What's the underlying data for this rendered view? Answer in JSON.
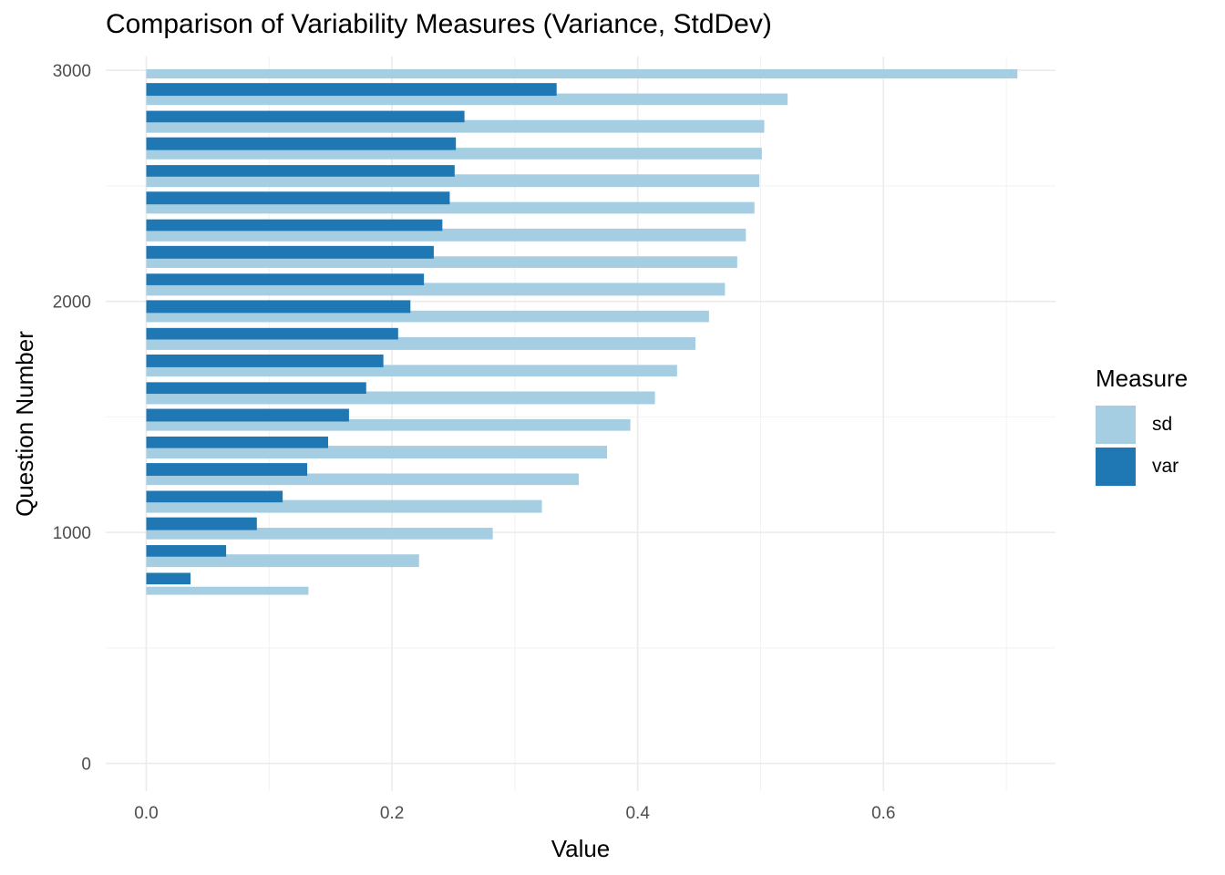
{
  "chart_data": {
    "type": "bar",
    "orientation": "horizontal",
    "title": "Comparison of Variability Measures (Variance, StdDev)",
    "xlabel": "Value",
    "ylabel": "Question Number",
    "xlim": [
      -0.033,
      0.74
    ],
    "ylim": [
      -120,
      3060
    ],
    "x_ticks": [
      0.0,
      0.2,
      0.4,
      0.6
    ],
    "x_tick_labels": [
      "0.0",
      "0.2",
      "0.4",
      "0.6"
    ],
    "y_ticks": [
      0,
      1000,
      2000,
      3000
    ],
    "y_tick_labels": [
      "0",
      "1000",
      "2000",
      "3000"
    ],
    "grid": true,
    "legend": {
      "title": "Measure",
      "placement": "right"
    },
    "series": [
      {
        "name": "sd",
        "color": "#a6cee3",
        "bars": [
          {
            "y_range": [
              730,
              765
            ],
            "value": 0.132
          },
          {
            "y_range": [
              850,
              905
            ],
            "value": 0.222
          },
          {
            "y_range": [
              970,
              1020
            ],
            "value": 0.282
          },
          {
            "y_range": [
              1085,
              1140
            ],
            "value": 0.322
          },
          {
            "y_range": [
              1205,
              1255
            ],
            "value": 0.352
          },
          {
            "y_range": [
              1320,
              1375
            ],
            "value": 0.375
          },
          {
            "y_range": [
              1440,
              1490
            ],
            "value": 0.394
          },
          {
            "y_range": [
              1555,
              1610
            ],
            "value": 0.414
          },
          {
            "y_range": [
              1675,
              1725
            ],
            "value": 0.432
          },
          {
            "y_range": [
              1790,
              1845
            ],
            "value": 0.447
          },
          {
            "y_range": [
              1910,
              1960
            ],
            "value": 0.458
          },
          {
            "y_range": [
              2025,
              2080
            ],
            "value": 0.471
          },
          {
            "y_range": [
              2145,
              2195
            ],
            "value": 0.481
          },
          {
            "y_range": [
              2260,
              2315
            ],
            "value": 0.488
          },
          {
            "y_range": [
              2380,
              2430
            ],
            "value": 0.495
          },
          {
            "y_range": [
              2495,
              2550
            ],
            "value": 0.499
          },
          {
            "y_range": [
              2615,
              2665
            ],
            "value": 0.501
          },
          {
            "y_range": [
              2730,
              2785
            ],
            "value": 0.503
          },
          {
            "y_range": [
              2850,
              2900
            ],
            "value": 0.522
          },
          {
            "y_range": [
              2965,
              3005
            ],
            "value": 0.709
          }
        ]
      },
      {
        "name": "var",
        "color": "#1f78b4",
        "bars": [
          {
            "y_range": [
              775,
              825
            ],
            "value": 0.036
          },
          {
            "y_range": [
              895,
              945
            ],
            "value": 0.065
          },
          {
            "y_range": [
              1010,
              1065
            ],
            "value": 0.09
          },
          {
            "y_range": [
              1130,
              1180
            ],
            "value": 0.111
          },
          {
            "y_range": [
              1245,
              1300
            ],
            "value": 0.131
          },
          {
            "y_range": [
              1365,
              1415
            ],
            "value": 0.148
          },
          {
            "y_range": [
              1480,
              1535
            ],
            "value": 0.165
          },
          {
            "y_range": [
              1600,
              1650
            ],
            "value": 0.179
          },
          {
            "y_range": [
              1715,
              1770
            ],
            "value": 0.193
          },
          {
            "y_range": [
              1835,
              1885
            ],
            "value": 0.205
          },
          {
            "y_range": [
              1950,
              2005
            ],
            "value": 0.215
          },
          {
            "y_range": [
              2070,
              2120
            ],
            "value": 0.226
          },
          {
            "y_range": [
              2185,
              2240
            ],
            "value": 0.234
          },
          {
            "y_range": [
              2305,
              2355
            ],
            "value": 0.241
          },
          {
            "y_range": [
              2420,
              2475
            ],
            "value": 0.247
          },
          {
            "y_range": [
              2540,
              2590
            ],
            "value": 0.251
          },
          {
            "y_range": [
              2655,
              2710
            ],
            "value": 0.252
          },
          {
            "y_range": [
              2775,
              2825
            ],
            "value": 0.259
          },
          {
            "y_range": [
              2890,
              2945
            ],
            "value": 0.334
          }
        ]
      }
    ]
  }
}
